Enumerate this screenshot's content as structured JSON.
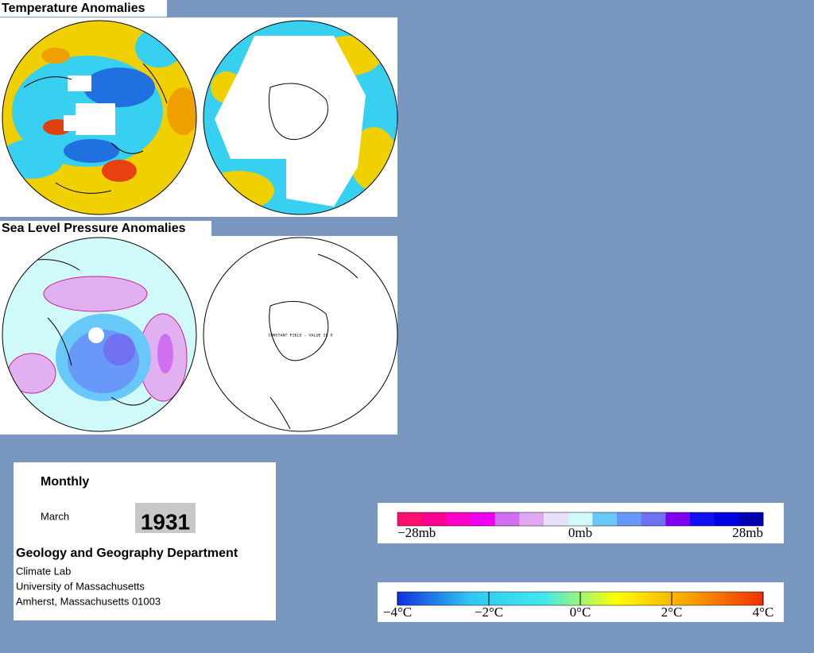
{
  "panels": [
    {
      "title": "Temperature Anomalies"
    },
    {
      "title": "Sea Level Pressure Anomalies",
      "note": "CONSTANT FIELD - VALUE IS 0"
    }
  ],
  "info": {
    "period": "Monthly",
    "month": "March",
    "year": "1931",
    "department": "Geology and Geography Department",
    "address": [
      "Climate Lab",
      "University of Massachusetts",
      "Amherst, Massachusetts 01003"
    ]
  },
  "pressure_scale": {
    "labels": [
      "−28mb",
      "0mb",
      "28mb"
    ],
    "colors": [
      "#ff1070",
      "#ff0090",
      "#ff00c8",
      "#f000f0",
      "#d070f0",
      "#e0a8f0",
      "#e8e0f8",
      "#d0fafa",
      "#68c8f8",
      "#6898f8",
      "#7070f0",
      "#8000f0",
      "#1010f0",
      "#0000e0",
      "#0000b0"
    ]
  },
  "temperature_scale": {
    "labels": [
      "−4°C",
      "−2°C",
      "0°C",
      "2°C",
      "4°C"
    ],
    "colors": [
      "#1030e0",
      "#30c8f0",
      "#40e8f0",
      "#ffff00",
      "#f8a000",
      "#f03000"
    ]
  }
}
